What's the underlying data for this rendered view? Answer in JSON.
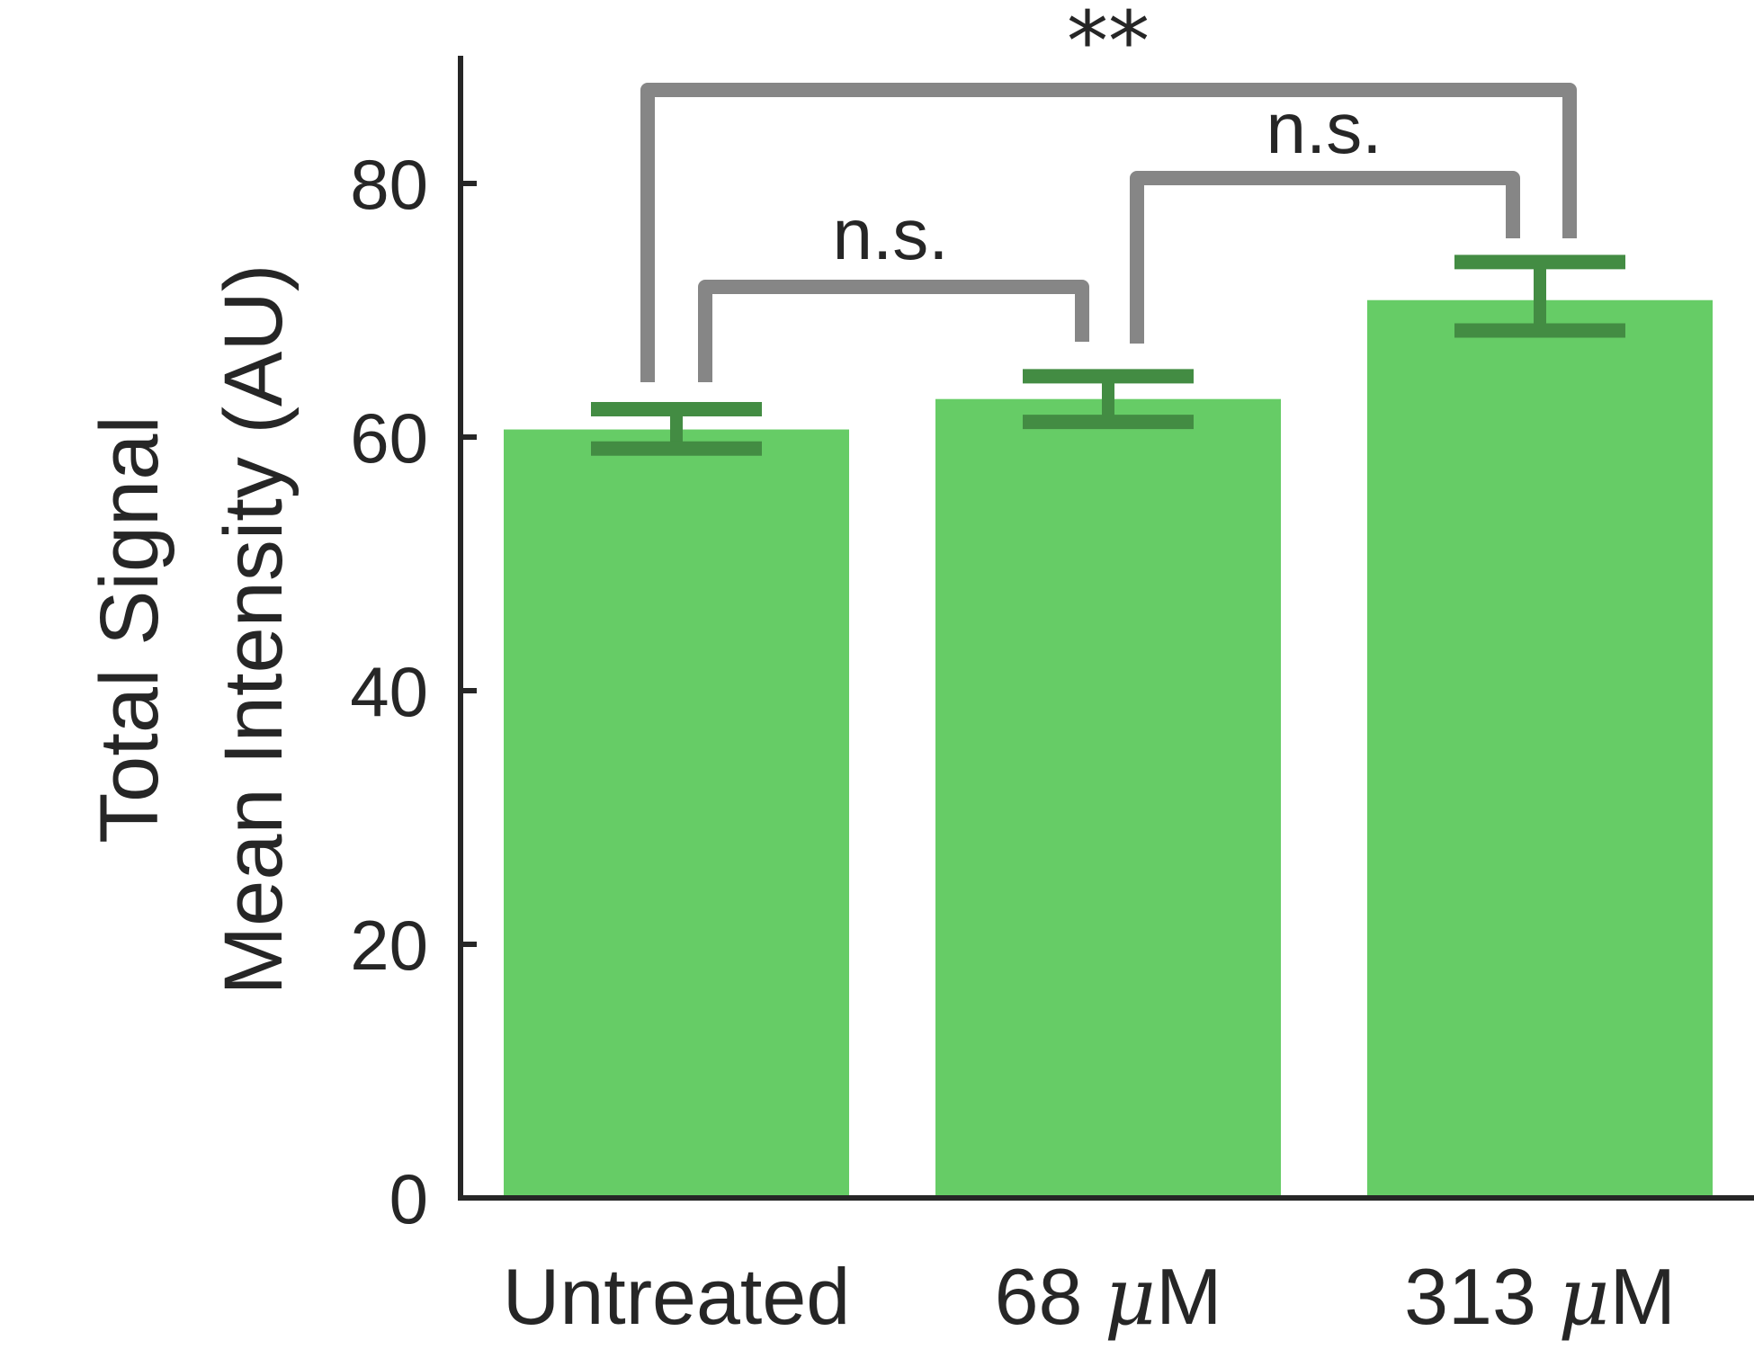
{
  "chart_data": {
    "type": "bar",
    "categories": [
      {
        "prefix": "Untreated",
        "mu": "",
        "suffix": ""
      },
      {
        "prefix": "68 ",
        "mu": "μ",
        "suffix": "M"
      },
      {
        "prefix": "313 ",
        "mu": "μ",
        "suffix": "M"
      }
    ],
    "values": [
      60.6,
      63.0,
      70.8
    ],
    "error_low": [
      59.1,
      61.2,
      68.4
    ],
    "error_high": [
      62.2,
      64.8,
      73.8
    ],
    "ylabel_lines": [
      "Total Signal",
      "Mean Intensity (AU)"
    ],
    "yticks": [
      0,
      20,
      40,
      60,
      80
    ],
    "ylim": [
      0,
      90
    ],
    "grid": false,
    "significance": [
      {
        "from": 0,
        "to": 1,
        "label": "n.s."
      },
      {
        "from": 1,
        "to": 2,
        "label": "n.s."
      },
      {
        "from": 0,
        "to": 2,
        "label": "**"
      }
    ],
    "colors": {
      "bar": "#66cc66",
      "error": "#438c43",
      "bracket": "#868686",
      "axis": "#262626"
    }
  }
}
